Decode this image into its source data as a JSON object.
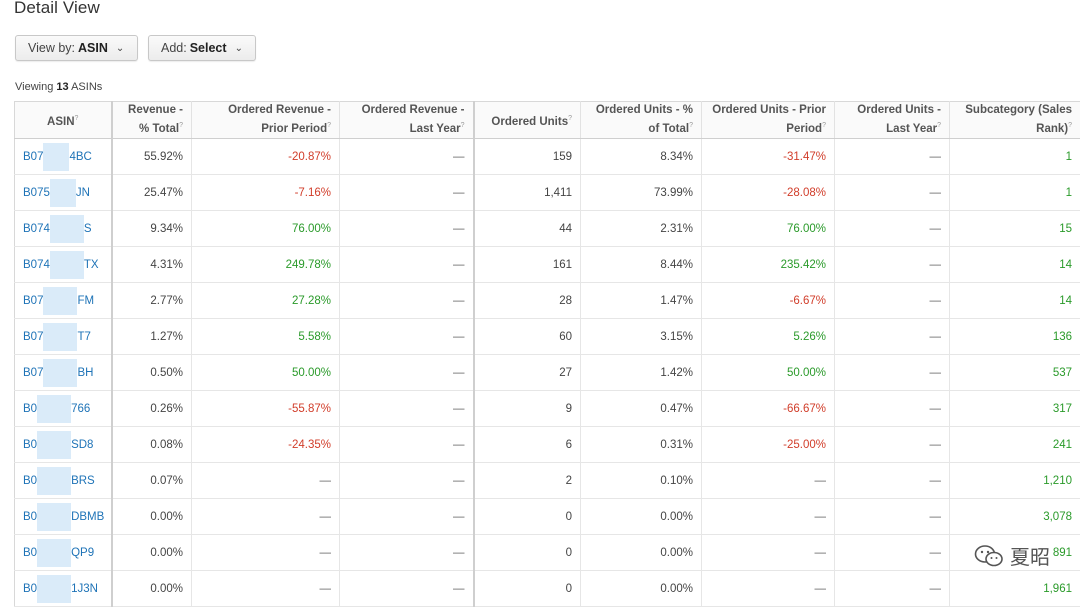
{
  "page": {
    "title": "Detail View"
  },
  "controls": {
    "view_by_prefix": "View by:",
    "view_by_value": "ASIN",
    "add_prefix": "Add:",
    "add_value": "Select"
  },
  "summary": {
    "prefix": "Viewing",
    "count": "13",
    "suffix": "ASINs"
  },
  "columns": [
    "ASIN",
    "Revenue - % Total",
    "Ordered Revenue - Prior Period",
    "Ordered Revenue - Last Year",
    "Ordered Units",
    "Ordered Units - % of Total",
    "Ordered Units - Prior Period",
    "Ordered Units - Last Year",
    "Subcategory (Sales Rank)"
  ],
  "rows": [
    {
      "asin_a": "B07",
      "asin_b": "4BC",
      "rev_pct": "55.92%",
      "rev_prior": "-20.87%",
      "rev_ly": "—",
      "units": "159",
      "units_pct": "8.34%",
      "units_prior": "-31.47%",
      "units_ly": "—",
      "rank": "1"
    },
    {
      "asin_a": "B075",
      "asin_b": "JN",
      "rev_pct": "25.47%",
      "rev_prior": "-7.16%",
      "rev_ly": "—",
      "units": "1,411",
      "units_pct": "73.99%",
      "units_prior": "-28.08%",
      "units_ly": "—",
      "rank": "1"
    },
    {
      "asin_a": "B074",
      "asin_b": "S",
      "rev_pct": "9.34%",
      "rev_prior": "76.00%",
      "rev_ly": "—",
      "units": "44",
      "units_pct": "2.31%",
      "units_prior": "76.00%",
      "units_ly": "—",
      "rank": "15"
    },
    {
      "asin_a": "B074",
      "asin_b": "TX",
      "rev_pct": "4.31%",
      "rev_prior": "249.78%",
      "rev_ly": "—",
      "units": "161",
      "units_pct": "8.44%",
      "units_prior": "235.42%",
      "units_ly": "—",
      "rank": "14"
    },
    {
      "asin_a": "B07",
      "asin_b": "FM",
      "rev_pct": "2.77%",
      "rev_prior": "27.28%",
      "rev_ly": "—",
      "units": "28",
      "units_pct": "1.47%",
      "units_prior": "-6.67%",
      "units_ly": "—",
      "rank": "14"
    },
    {
      "asin_a": "B07",
      "asin_b": "T7",
      "rev_pct": "1.27%",
      "rev_prior": "5.58%",
      "rev_ly": "—",
      "units": "60",
      "units_pct": "3.15%",
      "units_prior": "5.26%",
      "units_ly": "—",
      "rank": "136"
    },
    {
      "asin_a": "B07",
      "asin_b": "BH",
      "rev_pct": "0.50%",
      "rev_prior": "50.00%",
      "rev_ly": "—",
      "units": "27",
      "units_pct": "1.42%",
      "units_prior": "50.00%",
      "units_ly": "—",
      "rank": "537"
    },
    {
      "asin_a": "B0",
      "asin_b": "766",
      "rev_pct": "0.26%",
      "rev_prior": "-55.87%",
      "rev_ly": "—",
      "units": "9",
      "units_pct": "0.47%",
      "units_prior": "-66.67%",
      "units_ly": "—",
      "rank": "317"
    },
    {
      "asin_a": "B0",
      "asin_b": "SD8",
      "rev_pct": "0.08%",
      "rev_prior": "-24.35%",
      "rev_ly": "—",
      "units": "6",
      "units_pct": "0.31%",
      "units_prior": "-25.00%",
      "units_ly": "—",
      "rank": "241"
    },
    {
      "asin_a": "B0",
      "asin_b": "BRS",
      "rev_pct": "0.07%",
      "rev_prior": "—",
      "rev_ly": "—",
      "units": "2",
      "units_pct": "0.10%",
      "units_prior": "—",
      "units_ly": "—",
      "rank": "1,210"
    },
    {
      "asin_a": "B0",
      "asin_b": "DBMB",
      "rev_pct": "0.00%",
      "rev_prior": "—",
      "rev_ly": "—",
      "units": "0",
      "units_pct": "0.00%",
      "units_prior": "—",
      "units_ly": "—",
      "rank": "3,078"
    },
    {
      "asin_a": "B0",
      "asin_b": "QP9",
      "rev_pct": "0.00%",
      "rev_prior": "—",
      "rev_ly": "—",
      "units": "0",
      "units_pct": "0.00%",
      "units_prior": "—",
      "units_ly": "—",
      "rank": "891"
    },
    {
      "asin_a": "B0",
      "asin_b": "1J3N",
      "rev_pct": "0.00%",
      "rev_prior": "—",
      "rev_ly": "—",
      "units": "0",
      "units_pct": "0.00%",
      "units_prior": "—",
      "units_ly": "—",
      "rank": "1,961"
    }
  ],
  "watermark": {
    "text": "夏昭",
    "icon": "wechat-icon"
  },
  "colors": {
    "link": "#1e73b7",
    "negative": "#d13d2a",
    "positive": "#2a9a2a"
  }
}
